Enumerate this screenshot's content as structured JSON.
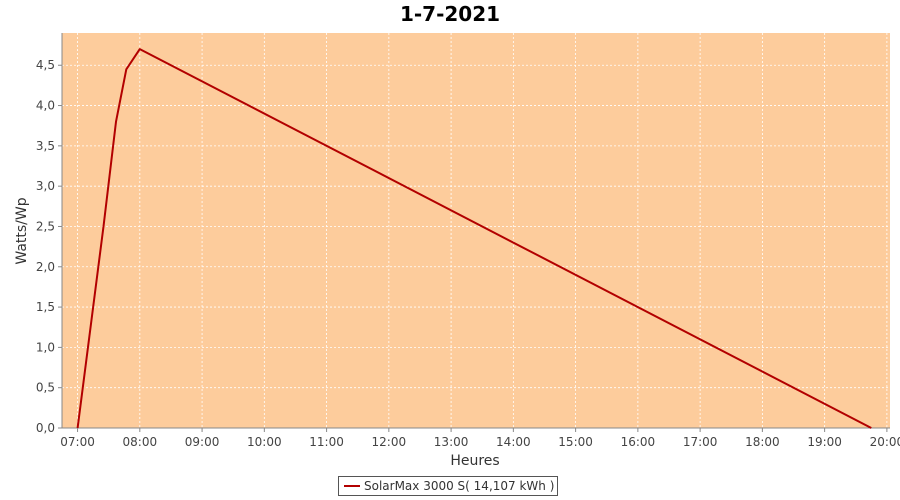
{
  "chart_data": {
    "type": "line",
    "title": "1-7-2021",
    "xlabel": "Heures",
    "ylabel": "Watts/Wp",
    "xlim": [
      6.75,
      20.05
    ],
    "ylim": [
      0,
      4.9
    ],
    "x_ticks": [
      "07:00",
      "08:00",
      "09:00",
      "10:00",
      "11:00",
      "12:00",
      "13:00",
      "14:00",
      "15:00",
      "16:00",
      "17:00",
      "18:00",
      "19:00",
      "20:00"
    ],
    "y_ticks": [
      "0,0",
      "0,5",
      "1,0",
      "1,5",
      "2,0",
      "2,5",
      "3,0",
      "3,5",
      "4,0",
      "4,5"
    ],
    "grid": true,
    "legend_position": "bottom",
    "series": [
      {
        "name": "SolarMax 3000 S( 14,107 kWh )",
        "x": [
          "07:00",
          "07:25",
          "07:37",
          "07:47",
          "08:00",
          "19:45"
        ],
        "y": [
          0.0,
          2.5,
          3.8,
          4.45,
          4.7,
          0.0
        ]
      }
    ]
  },
  "colors": {
    "plot_background": "#fdcc9c",
    "gridline": "#ffffff",
    "series_line": "#b20000"
  }
}
